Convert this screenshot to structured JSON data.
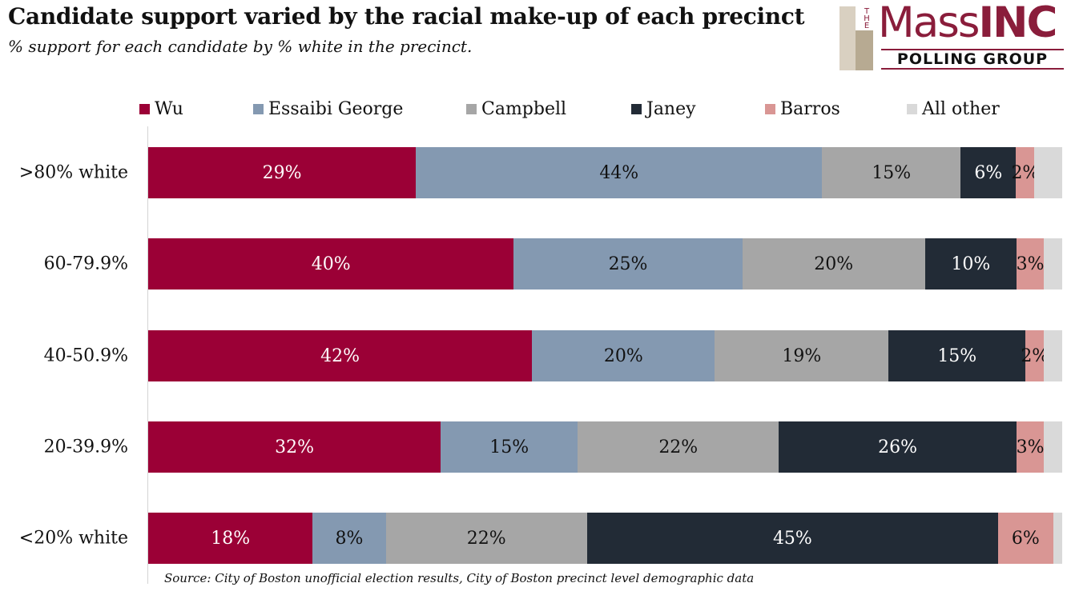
{
  "header": {
    "title": "Candidate support varied by the racial make-up of each precinct",
    "subtitle": "% support for each candidate by % white in the precinct."
  },
  "logo": {
    "the": "THE",
    "mass": "Mass",
    "inc": "INC",
    "polling": "POLLING GROUP"
  },
  "source": "Source: City of Boston unofficial election results, City of Boston precinct level demographic data",
  "chart_data": {
    "type": "bar",
    "orientation": "horizontal",
    "stacked": true,
    "categories": [
      ">80% white",
      "60-79.9%",
      "40-50.9%",
      "20-39.9%",
      "<20% white"
    ],
    "legend_position": "top",
    "series": [
      {
        "name": "Wu",
        "color": "#9b0036",
        "text_color": "#ffffff",
        "values": [
          29,
          40,
          42,
          32,
          18
        ],
        "labels": [
          "29%",
          "40%",
          "42%",
          "32%",
          "18%"
        ]
      },
      {
        "name": "Essaibi George",
        "color": "#8499b1",
        "text_color": "#111111",
        "values": [
          44,
          25,
          20,
          15,
          8
        ],
        "labels": [
          "44%",
          "25%",
          "20%",
          "15%",
          "8%"
        ]
      },
      {
        "name": "Campbell",
        "color": "#a6a6a6",
        "text_color": "#111111",
        "values": [
          15,
          20,
          19,
          22,
          22
        ],
        "labels": [
          "15%",
          "20%",
          "19%",
          "22%",
          "22%"
        ]
      },
      {
        "name": "Janey",
        "color": "#222b36",
        "text_color": "#ffffff",
        "values": [
          6,
          10,
          15,
          26,
          45
        ],
        "labels": [
          "6%",
          "10%",
          "15%",
          "26%",
          "45%"
        ]
      },
      {
        "name": "Barros",
        "color": "#d99694",
        "text_color": "#111111",
        "values": [
          2,
          3,
          2,
          3,
          6
        ],
        "labels": [
          "2%",
          "3%",
          "2%",
          "3%",
          "6%"
        ]
      },
      {
        "name": "All other",
        "color": "#d9d9d9",
        "text_color": "#111111",
        "values": [
          3,
          2,
          2,
          2,
          1
        ],
        "labels": [
          "",
          "",
          "",
          "",
          ""
        ]
      }
    ],
    "xlim": [
      0,
      100
    ]
  }
}
